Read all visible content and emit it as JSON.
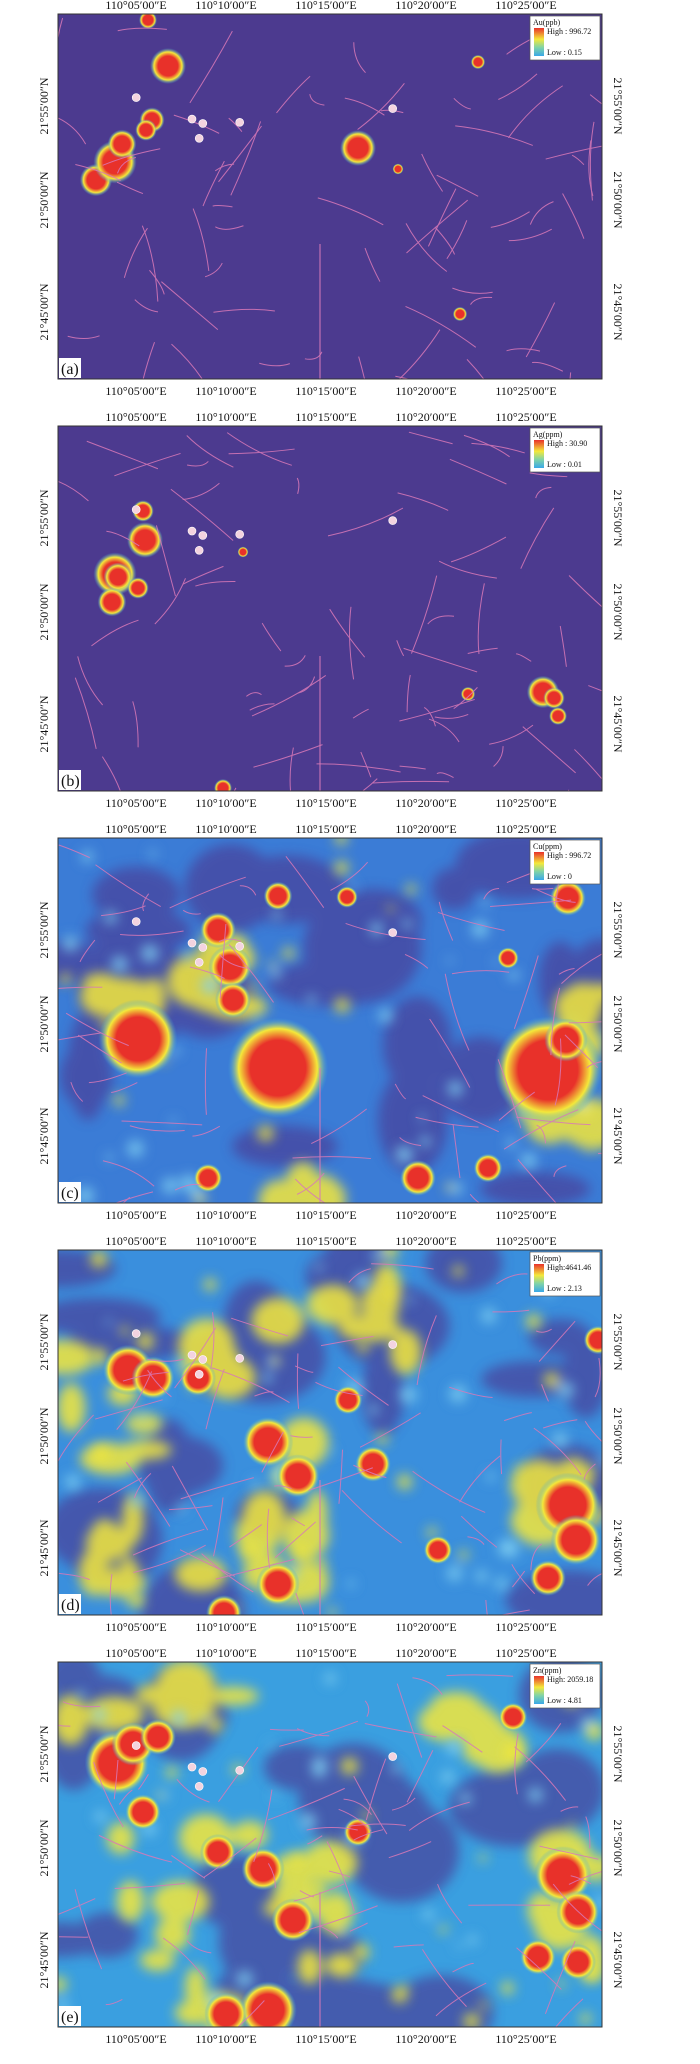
{
  "lon_labels": [
    "110°05′00″E",
    "110°10′00″E",
    "110°15′00″E",
    "110°20′00″E",
    "110°25′00″E"
  ],
  "lat_labels": [
    "21°55′00″N",
    "21°50′00″N",
    "21°45′00″N"
  ],
  "colors": {
    "background_low": "#4a3a8e",
    "fault_lines": "#d979b8",
    "anomaly_high": "#e8312a",
    "anomaly_mid": "#f4e83a",
    "anomaly_low": "#3aa8e8",
    "frame": "#333333"
  },
  "panels": [
    {
      "id": "a",
      "label": "(a)",
      "element": "Au(ppb)",
      "high": "High : 996.72",
      "low": "Low : 0.15"
    },
    {
      "id": "b",
      "label": "(b)",
      "element": "Ag(ppm)",
      "high": "High : 30.90",
      "low": "Low : 0.01"
    },
    {
      "id": "c",
      "label": "(c)",
      "element": "Cu(ppm)",
      "high": "High : 996.72",
      "low": "Low : 0"
    },
    {
      "id": "d",
      "label": "(d)",
      "element": "Pb(ppm)",
      "high": "High:4641.46",
      "low": "Low : 2.13"
    },
    {
      "id": "e",
      "label": "(e)",
      "element": "Zn(ppm)",
      "high": "High: 2059.18",
      "low": "Low : 4.81"
    }
  ]
}
